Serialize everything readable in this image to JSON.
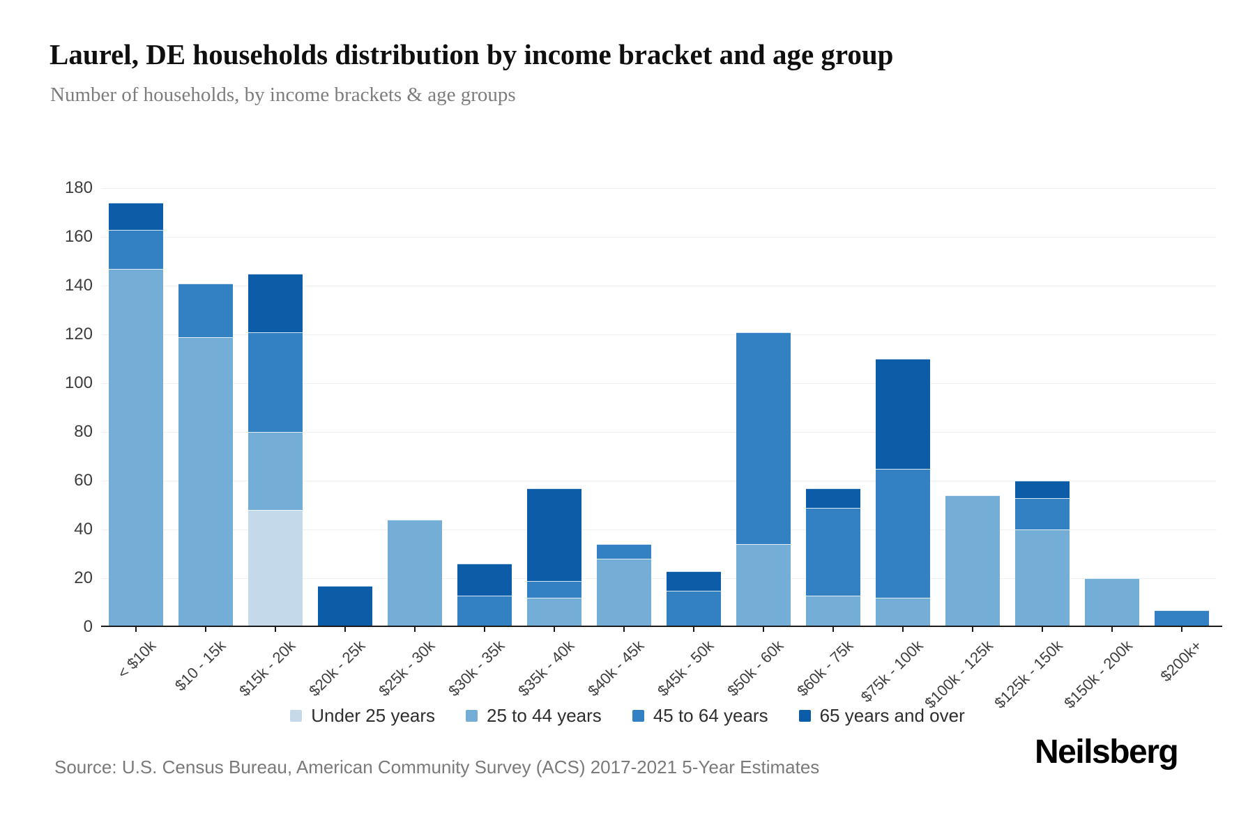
{
  "header": {
    "title": "Laurel, DE households distribution by income bracket and age group",
    "subtitle": "Number of households, by income brackets & age groups"
  },
  "chart_data": {
    "type": "bar",
    "stacked": true,
    "title": "Laurel, DE households distribution by income bracket and age group",
    "xlabel": "",
    "ylabel": "Number of households",
    "ylim": [
      0,
      180
    ],
    "ytick_step": 20,
    "grid": true,
    "legend_position": "bottom",
    "categories": [
      "< $10k",
      "$10 - 15k",
      "$15k - 20k",
      "$20k - 25k",
      "$25k - 30k",
      "$30k - 35k",
      "$35k - 40k",
      "$40k - 45k",
      "$45k - 50k",
      "$50k - 60k",
      "$60k - 75k",
      "$75k - 100k",
      "$100k - 125k",
      "$125k - 150k",
      "$150k - 200k",
      "$200k+"
    ],
    "series": [
      {
        "name": "Under 25 years",
        "color": "#c4daeb",
        "values": [
          0,
          0,
          48,
          0,
          0,
          0,
          0,
          0,
          0,
          0,
          0,
          0,
          0,
          0,
          0,
          0
        ]
      },
      {
        "name": "25 to 44 years",
        "color": "#74aed6",
        "values": [
          147,
          119,
          32,
          0,
          44,
          0,
          12,
          28,
          0,
          34,
          13,
          12,
          54,
          40,
          20,
          0
        ]
      },
      {
        "name": "45 to 64 years",
        "color": "#3381c2",
        "values": [
          16,
          22,
          41,
          0,
          0,
          13,
          7,
          6,
          15,
          87,
          36,
          53,
          0,
          13,
          0,
          7
        ]
      },
      {
        "name": "65 years and over",
        "color": "#0d5ca8",
        "values": [
          11,
          0,
          24,
          17,
          0,
          13,
          38,
          0,
          8,
          0,
          8,
          45,
          0,
          7,
          0,
          0
        ]
      }
    ],
    "totals": [
      174,
      141,
      145,
      17,
      44,
      26,
      57,
      34,
      23,
      121,
      57,
      110,
      54,
      60,
      20,
      7
    ]
  },
  "footer": {
    "source": "Source: U.S. Census Bureau, American Community Survey (ACS) 2017-2021 5-Year Estimates",
    "logo": "Neilsberg"
  }
}
